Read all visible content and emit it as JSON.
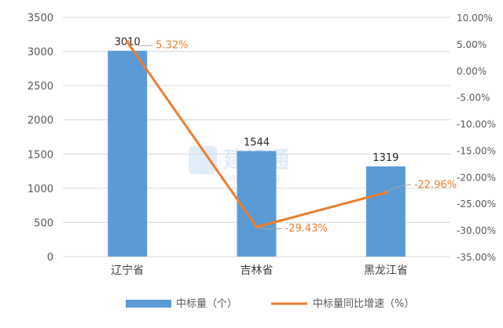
{
  "watermark": {
    "text": "建设通",
    "subtext": "jianshetong"
  },
  "chart_data": {
    "type": "bar",
    "categories": [
      "辽宁省",
      "吉林省",
      "黑龙江省"
    ],
    "series": [
      {
        "name": "中标量（个）",
        "type": "bar",
        "axis": "left",
        "values": [
          3010,
          1544,
          1319
        ],
        "labels": [
          "3010",
          "1544",
          "1319"
        ],
        "color": "#5B9BD5"
      },
      {
        "name": "中标量同比增速（%）",
        "type": "line",
        "axis": "right",
        "values": [
          5.32,
          -29.43,
          -22.96
        ],
        "labels": [
          "5.32%",
          "-29.43%",
          "-22.96%"
        ],
        "color": "#ED7D31"
      }
    ],
    "y_left": {
      "ylim": [
        0,
        3500
      ],
      "ticks": [
        0,
        500,
        1000,
        1500,
        2000,
        2500,
        3000,
        3500
      ],
      "tick_labels": [
        "0",
        "500",
        "1000",
        "1500",
        "2000",
        "2500",
        "3000",
        "3500"
      ]
    },
    "y_right": {
      "ylim": [
        -35,
        10
      ],
      "ticks": [
        10,
        5,
        0,
        -5,
        -10,
        -15,
        -20,
        -25,
        -30,
        -35
      ],
      "tick_labels": [
        "10.00%",
        "5.00%",
        "0.00%",
        "-5.00%",
        "-10.00%",
        "-15.00%",
        "-20.00%",
        "-25.00%",
        "-30.00%",
        "-35.00%"
      ]
    },
    "grid": true,
    "legend": "bottom",
    "colors": {
      "gridline": "#D9D9D9",
      "axis_text": "#595959",
      "line_label": "#ED7D31"
    }
  }
}
